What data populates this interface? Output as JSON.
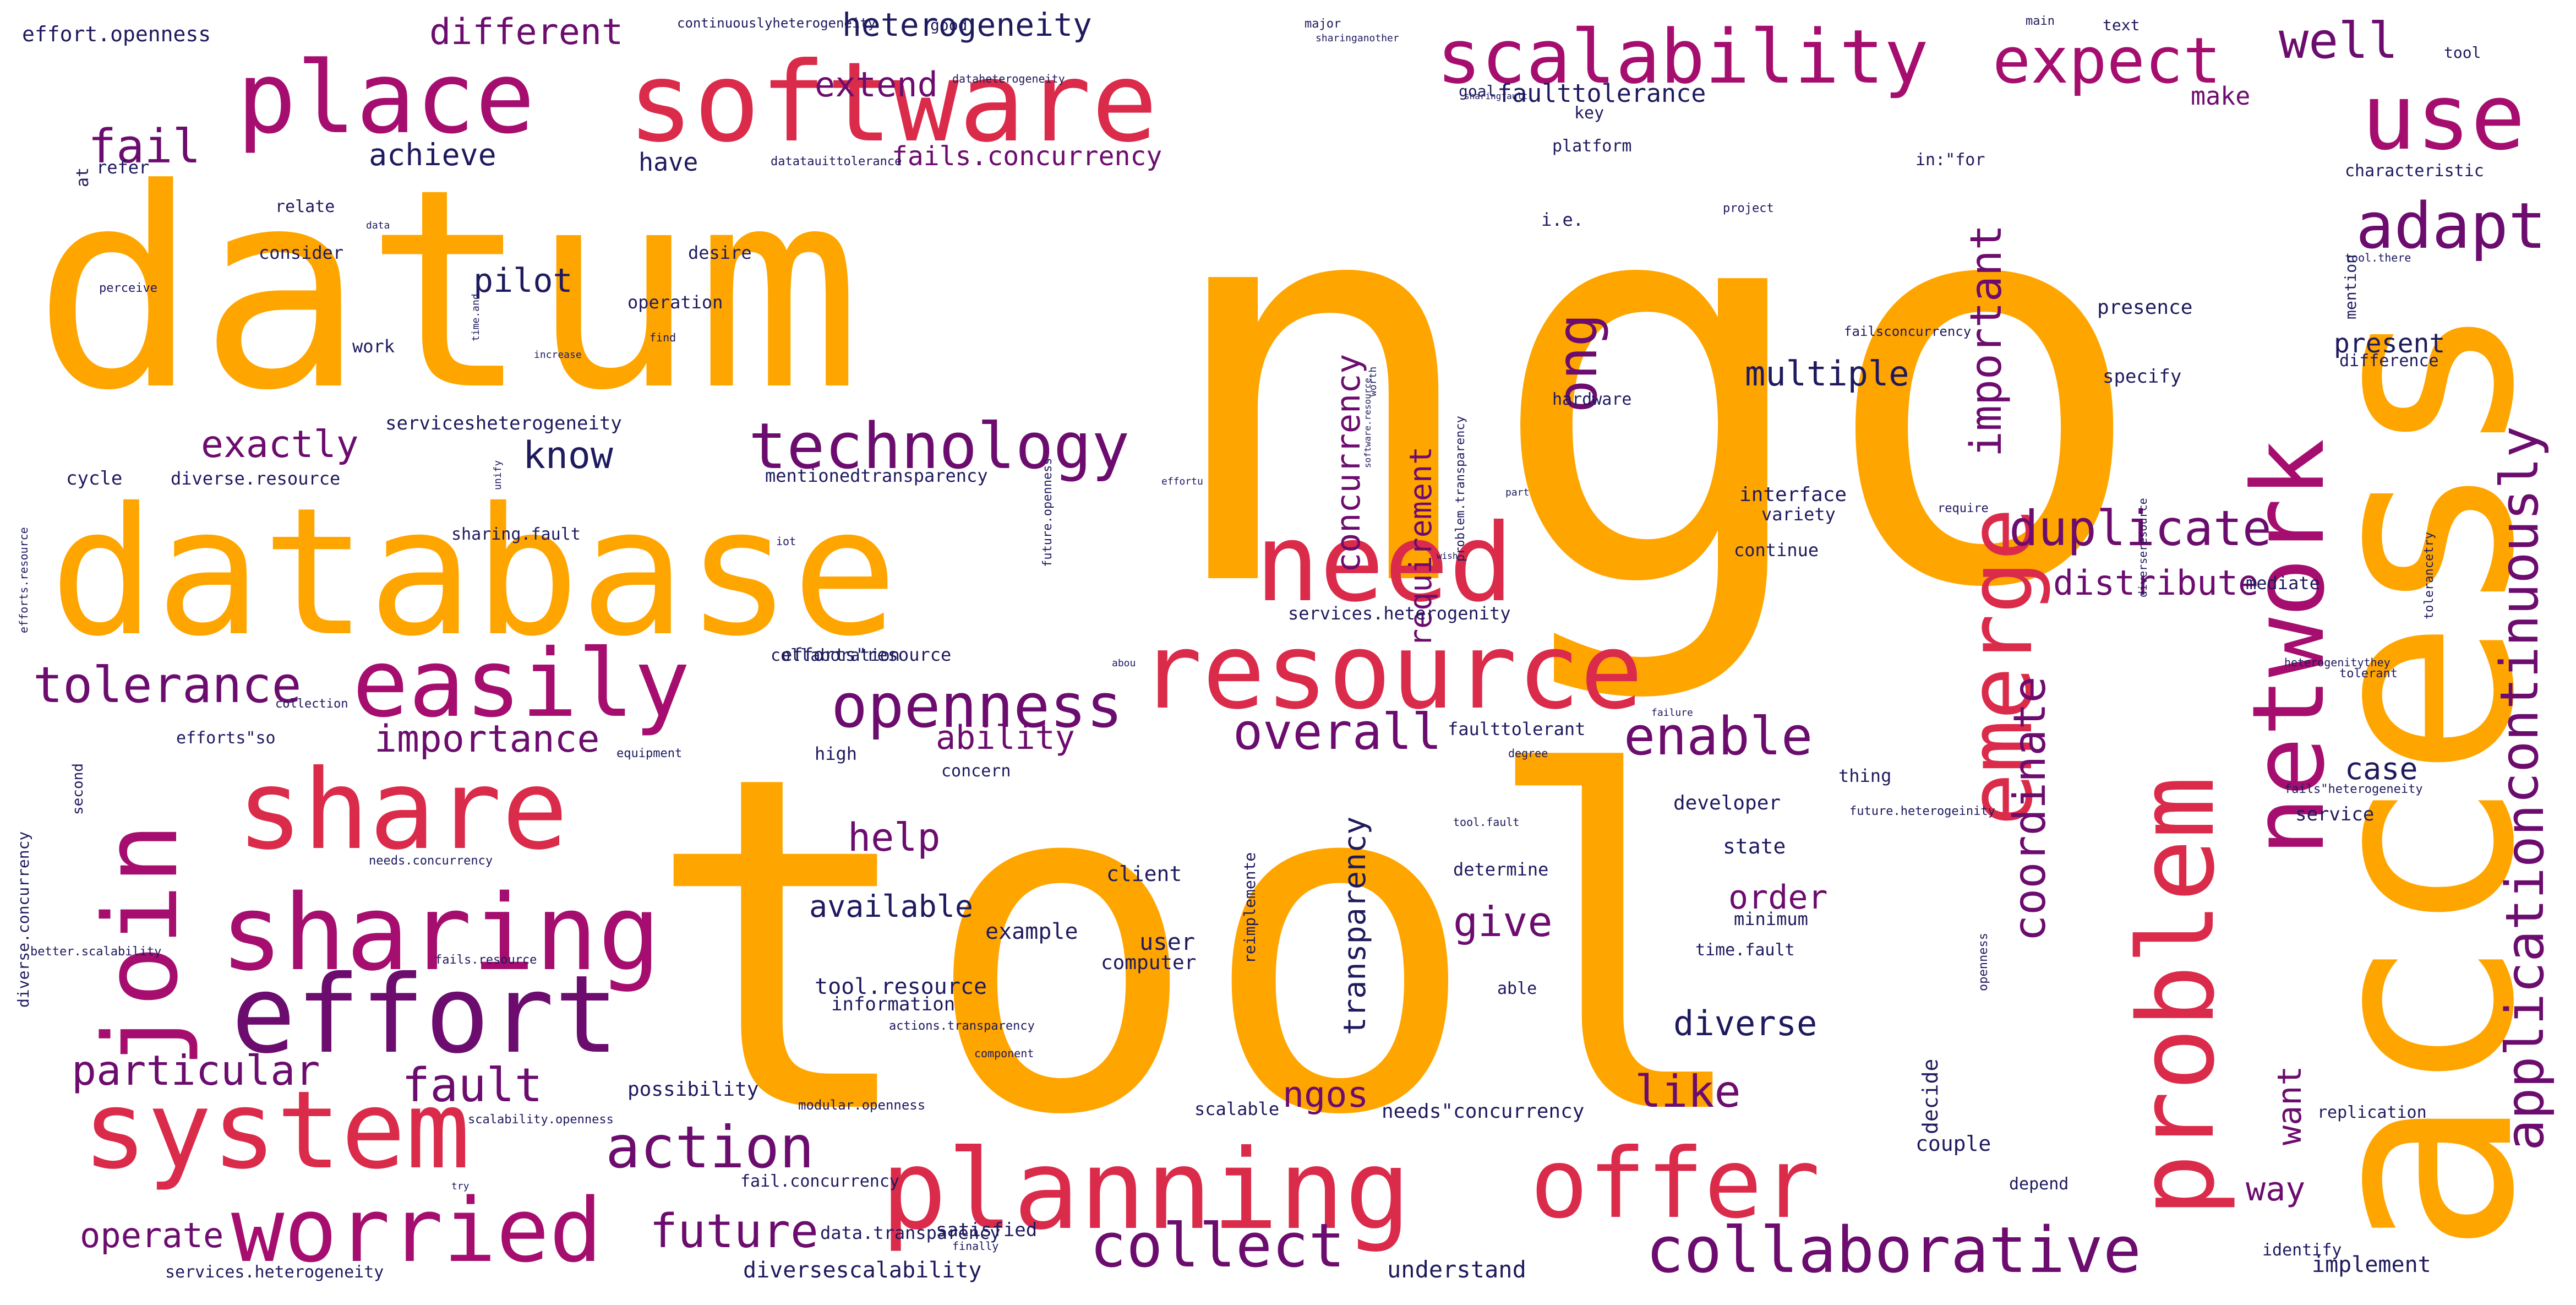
{
  "palette": {
    "orange": "#ffa500",
    "red": "#db2b4a",
    "magenta": "#a50e6e",
    "purple": "#6c0c6e",
    "navy": "#1e1a5e"
  },
  "words": [
    "ngo",
    "tool",
    "datum",
    "access",
    "database",
    "software",
    "place",
    "scalability",
    "use",
    "expect",
    "well",
    "resource",
    "need",
    "problem",
    "network",
    "share",
    "sharing",
    "join",
    "easily",
    "effort",
    "system",
    "worried",
    "planning",
    "offer",
    "emerge",
    "adapt",
    "application",
    "continuously",
    "technology",
    "openness",
    "tolerance",
    "duplicate",
    "distribute",
    "important",
    "collaborative",
    "collect",
    "action",
    "enable",
    "overall",
    "coordinate",
    "concurrency",
    "requirement",
    "transparency",
    "ong",
    "fault",
    "future",
    "particular",
    "help",
    "like",
    "different",
    "heterogeneity",
    "extend",
    "fail",
    "achieve",
    "pilot",
    "exactly",
    "know",
    "importance",
    "multiple",
    "diverse",
    "order",
    "give",
    "operate",
    "ngos",
    "way",
    "case",
    "present",
    "want",
    "available",
    "ability",
    "make",
    "faulttolerance",
    "fails.concurrency",
    "have",
    "effort.openness",
    "refer",
    "relate",
    "consider",
    "desire",
    "operation",
    "work",
    "servicesheterogeneity",
    "cycle",
    "diverse.resource",
    "mentionedtransparency",
    "sharing.fault",
    "efforts\"resource",
    "efforts\"so",
    "collaboration",
    "services.heterogenity",
    "faulttolerant",
    "tool.resource",
    "information",
    "user",
    "computer",
    "client",
    "example",
    "possibility",
    "needs\"concurrency",
    "scalable",
    "diversescalability",
    "understand",
    "satisfied",
    "data.transparency",
    "services.heterogeneity",
    "fail.concurrency",
    "high",
    "concern",
    "developer",
    "thing",
    "state",
    "minimum",
    "time.fault",
    "determine",
    "able",
    "couple",
    "decide",
    "depend",
    "replication",
    "implement",
    "identify",
    "mediate",
    "service",
    "specify",
    "presence",
    "characteristic",
    "difference",
    "platform",
    "key",
    "i.e.",
    "hardware",
    "interface",
    "variety",
    "continue",
    "in:\"for",
    "goal",
    "good",
    "text",
    "main",
    "major",
    "continuouslyheterogeneity",
    "tool",
    "at",
    "reimplemente",
    "diverse.concurrency",
    "failsconcurrency",
    "future.heterogeinity",
    "heterogenitythey",
    "fails\"heterogeneity",
    "tolerancetry",
    "efforts.resource",
    "problem.transparency",
    "future.openness",
    "modular.openness",
    "actions.transparency",
    "needs.concurrency",
    "better.scalability",
    "fails.resource",
    "scalability.openness",
    "tool.fault",
    "project",
    "mention",
    "tool.there",
    "second",
    "collection",
    "equipment",
    "degree",
    "data",
    "perceive",
    "increase",
    "time.and",
    "find",
    "unify",
    "part",
    "iot",
    "failure",
    "worth",
    "diverseresource",
    "component",
    "require",
    "finally",
    "try",
    "openness",
    "datatauittolerance",
    "dataheterogeneity",
    "sharinganother",
    "sharingfault",
    "software.resource",
    "abou",
    "wish",
    "effortu",
    "tolerant"
  ]
}
